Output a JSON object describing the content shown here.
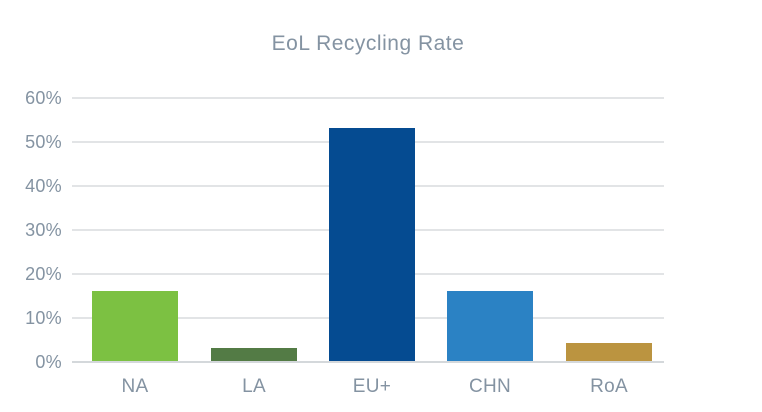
{
  "page": {
    "background_color": "#ffffff",
    "text_color": "#8493A2"
  },
  "chart": {
    "gridline_color": "#E2E4E6",
    "baseline_color": "#D4D8DB",
    "title_color": "#8493A2",
    "axis_label_color": "#8493A2"
  },
  "chart_data": {
    "type": "bar",
    "title": "EoL Recycling Rate",
    "categories": [
      "NA",
      "LA",
      "EU+",
      "CHN",
      "RoA"
    ],
    "values": [
      16,
      3,
      53,
      16,
      4
    ],
    "unit": "%",
    "bar_colors": [
      "#7CC142",
      "#537B45",
      "#054B91",
      "#2B82C4",
      "#BB9440"
    ],
    "xlabel": "",
    "ylabel": "",
    "ylim": [
      0,
      60
    ],
    "y_ticks_top_to_bottom": [
      "60%",
      "50%",
      "40%",
      "30%",
      "20%",
      "10%",
      "0%"
    ],
    "grid": true,
    "legend": false
  }
}
